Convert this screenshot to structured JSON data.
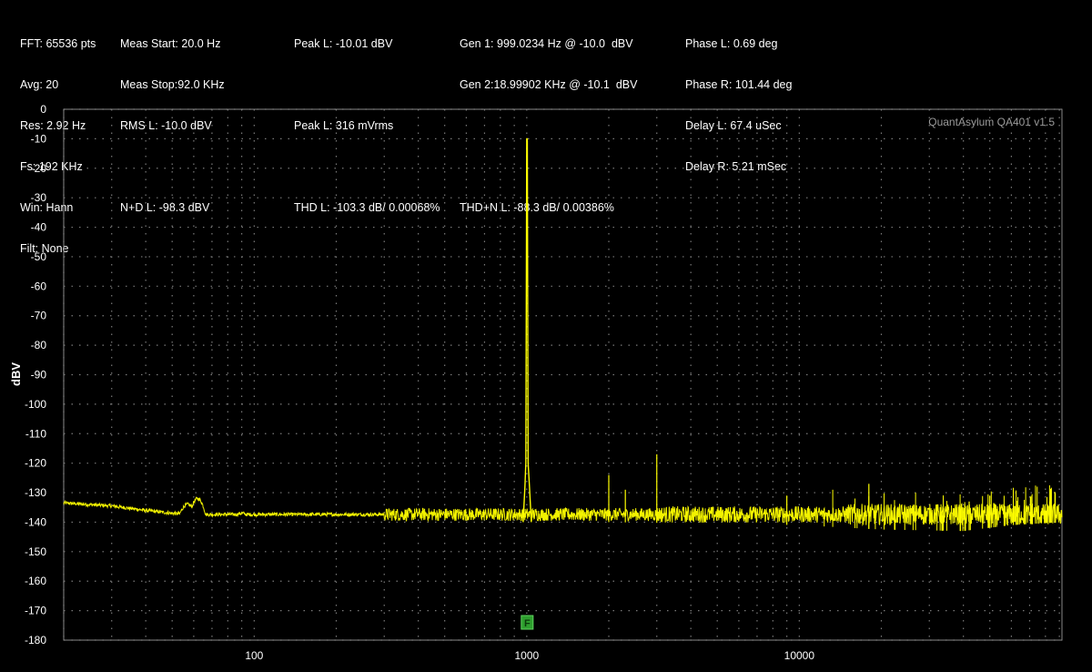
{
  "header": {
    "col1": [
      "FFT: 65536 pts",
      "Avg: 20",
      "Res: 2.92 Hz",
      "Fs: 192 KHz",
      "Win: Hann",
      "Filt: None"
    ],
    "meas_start": "Meas Start: 20.0 Hz",
    "meas_stop": "Meas Stop:92.0 KHz",
    "rms_l": "RMS L: -10.0 dBV",
    "nd_l": "N+D L: -98.3 dBV",
    "peak_l_dbv": "Peak L: -10.01 dBV",
    "peak_l_mvrms": "Peak L: 316 mVrms",
    "thd_l": "THD L: -103.3 dB/ 0.00068%",
    "gen1": "Gen 1: 999.0234 Hz @ -10.0  dBV",
    "gen2": "Gen 2:18.99902 KHz @ -10.1  dBV",
    "thdn_l": "THD+N L: -88.3 dB/ 0.00386%",
    "phase_l": "Phase L: 0.69 deg",
    "phase_r": "Phase R: 101.44 deg",
    "delay_l": "Delay L: 67.4 uSec",
    "delay_r": "Delay R: 5.21 mSec"
  },
  "colors": {
    "background": "#000000",
    "trace": "#ffff00",
    "grid": "#7a7a7a",
    "marker": "#2e9e2e"
  },
  "chart_data": {
    "type": "line",
    "ylabel": "dBV",
    "xscale": "log",
    "xlim": [
      20,
      92000
    ],
    "ylim": [
      -180,
      0
    ],
    "y_ticks": [
      0,
      -10,
      -20,
      -30,
      -40,
      -50,
      -60,
      -70,
      -80,
      -90,
      -100,
      -110,
      -120,
      -130,
      -140,
      -150,
      -160,
      -170,
      -180
    ],
    "x_ticks": [
      100,
      1000,
      10000
    ],
    "x_tick_labels": [
      "100",
      "1000",
      "10000"
    ],
    "grid": true,
    "watermark": "QuantAsylum QA401 v1.5",
    "marker_label": "F",
    "marker_x": 1000,
    "series": [
      {
        "noise_floor": [
          [
            20,
            -133.5
          ],
          [
            30,
            -134.5
          ],
          [
            40,
            -136
          ],
          [
            50,
            -137
          ],
          [
            70,
            -138
          ],
          [
            100,
            -138.5
          ],
          [
            200,
            -139
          ],
          [
            500,
            -139.5
          ],
          [
            1000,
            -140
          ],
          [
            2000,
            -140
          ],
          [
            5000,
            -140.5
          ],
          [
            10000,
            -141
          ],
          [
            20000,
            -142.5
          ],
          [
            40000,
            -143
          ],
          [
            60000,
            -141
          ],
          [
            92000,
            -140
          ]
        ],
        "noise_bumps": [
          [
            62,
            -132
          ],
          [
            57,
            -134
          ],
          [
            90,
            -137
          ],
          [
            130,
            -138
          ]
        ],
        "peaks": [
          [
            999,
            -10
          ],
          [
            1000,
            -120
          ],
          [
            1050,
            -128
          ],
          [
            2000,
            -131
          ],
          [
            3000,
            -136
          ],
          [
            4000,
            -142
          ]
        ],
        "spurs": [
          [
            2000,
            -124
          ],
          [
            2300,
            -129
          ],
          [
            3000,
            -117
          ],
          [
            9000,
            -131
          ],
          [
            18000,
            -127
          ],
          [
            42000,
            -133
          ],
          [
            50000,
            -131
          ]
        ]
      }
    ]
  }
}
